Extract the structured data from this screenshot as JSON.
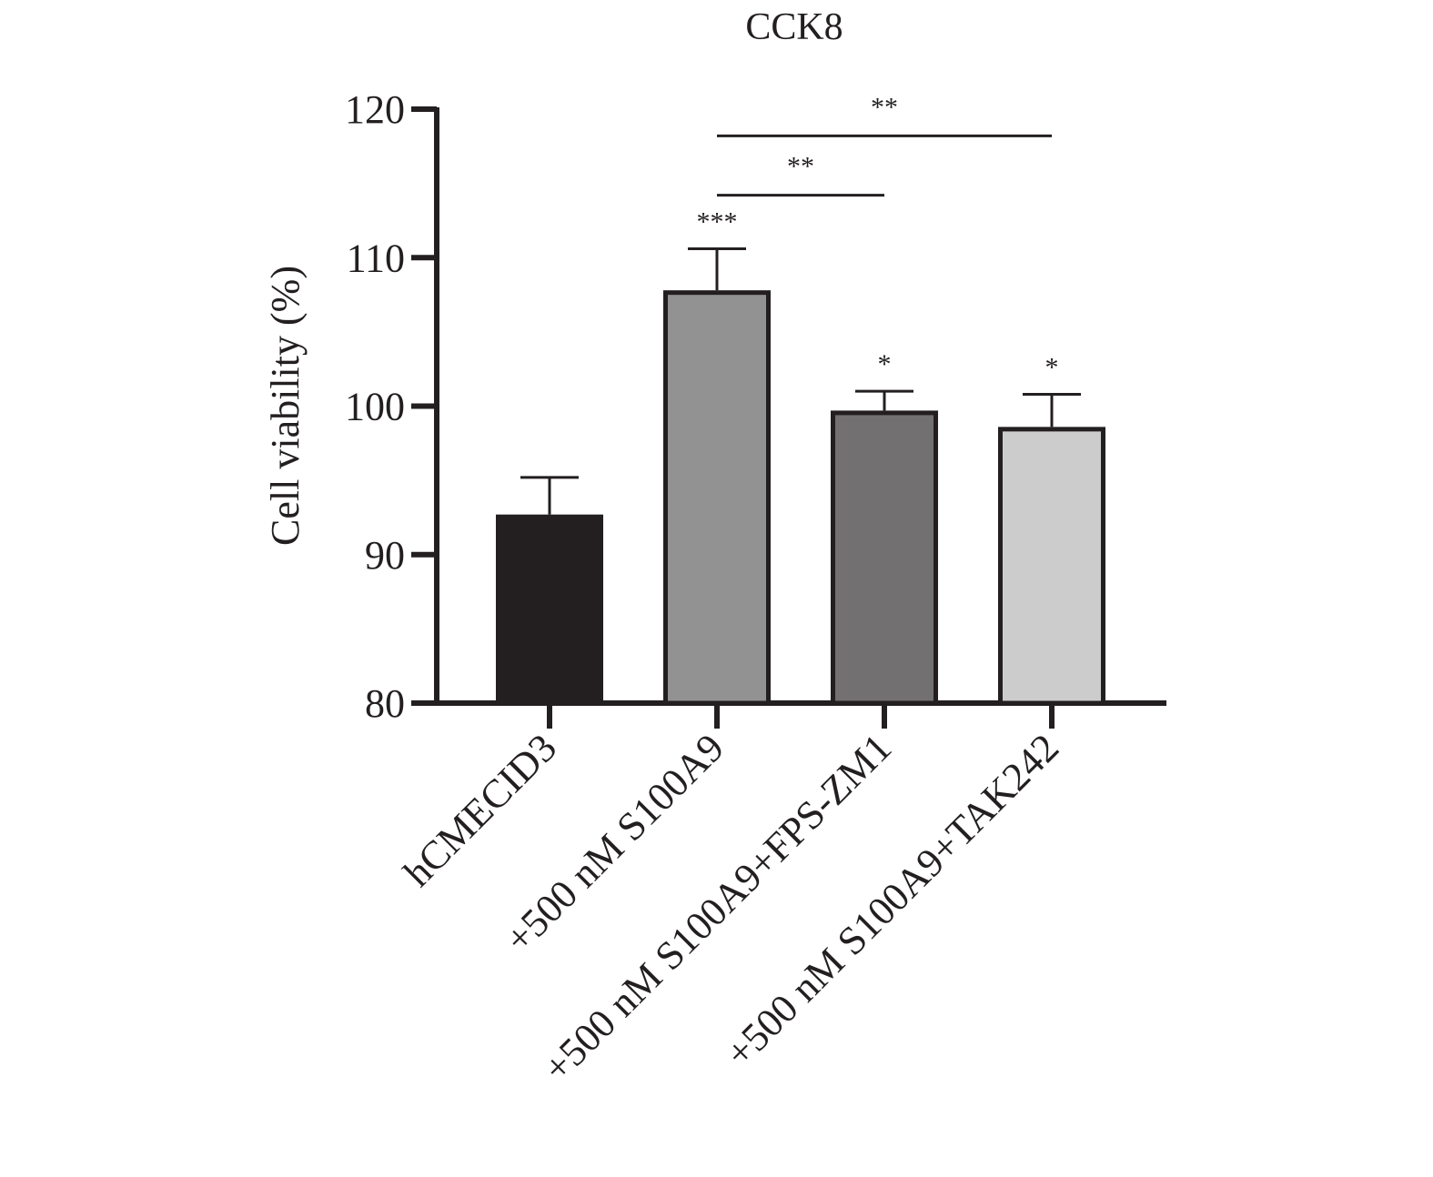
{
  "chart_data": {
    "type": "bar",
    "title": "CCK8",
    "xlabel": "",
    "ylabel": "Cell viability (%)",
    "ylim": [
      80,
      120
    ],
    "yticks": [
      80,
      90,
      100,
      110,
      120
    ],
    "categories": [
      "hCMECID3",
      "+500 nM S100A9",
      "+500 nM S100A9+FPS-ZM1",
      "+500 nM S100A9+TAK242"
    ],
    "values": [
      92.7,
      107.8,
      99.7,
      98.6
    ],
    "errors": [
      2.5,
      2.8,
      1.3,
      2.2
    ],
    "bar_colors": [
      "#231f20",
      "#939292",
      "#727071",
      "#cccccc"
    ],
    "bar_annotations": [
      "",
      "***",
      "*",
      "*"
    ],
    "comparisons": [
      {
        "from": 1,
        "to": 2,
        "label": "**",
        "y": 114.2
      },
      {
        "from": 1,
        "to": 3,
        "label": "**",
        "y": 118.2
      }
    ],
    "grid": false,
    "legend": "none"
  }
}
